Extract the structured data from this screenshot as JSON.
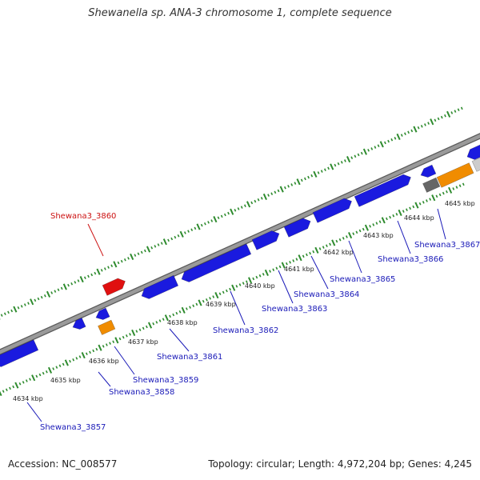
{
  "title": "Shewanella sp. ANA-3 chromosome 1, complete sequence",
  "footer": {
    "accession": "Accession: NC_008577",
    "summary": "Topology: circular; Length: 4,972,204 bp; Genes: 4,245"
  },
  "colors": {
    "backbone": "#9a9a9a",
    "tick": "#2e8b2e",
    "cds": "#1a1adf",
    "rna": "#f08c00",
    "pseudo": "#666666",
    "highlight": "#e01010",
    "label_blue": "#1a1ab8",
    "label_red": "#cc1111"
  },
  "scale_labels": [
    "4634 kbp",
    "4635 kbp",
    "4636 kbp",
    "4637 kbp",
    "4638 kbp",
    "4639 kbp",
    "4640 kbp",
    "4641 kbp",
    "4642 kbp",
    "4643 kbp",
    "4644 kbp",
    "4645 kbp"
  ],
  "genes": [
    {
      "label": "Shewana3_3857",
      "color": "label_blue"
    },
    {
      "label": "Shewana3_3858",
      "color": "label_blue"
    },
    {
      "label": "Shewana3_3859",
      "color": "label_blue"
    },
    {
      "label": "Shewana3_3860",
      "color": "label_red"
    },
    {
      "label": "Shewana3_3861",
      "color": "label_blue"
    },
    {
      "label": "Shewana3_3862",
      "color": "label_blue"
    },
    {
      "label": "Shewana3_3863",
      "color": "label_blue"
    },
    {
      "label": "Shewana3_3864",
      "color": "label_blue"
    },
    {
      "label": "Shewana3_3865",
      "color": "label_blue"
    },
    {
      "label": "Shewana3_3866",
      "color": "label_blue"
    },
    {
      "label": "Shewana3_3867",
      "color": "label_blue"
    }
  ]
}
